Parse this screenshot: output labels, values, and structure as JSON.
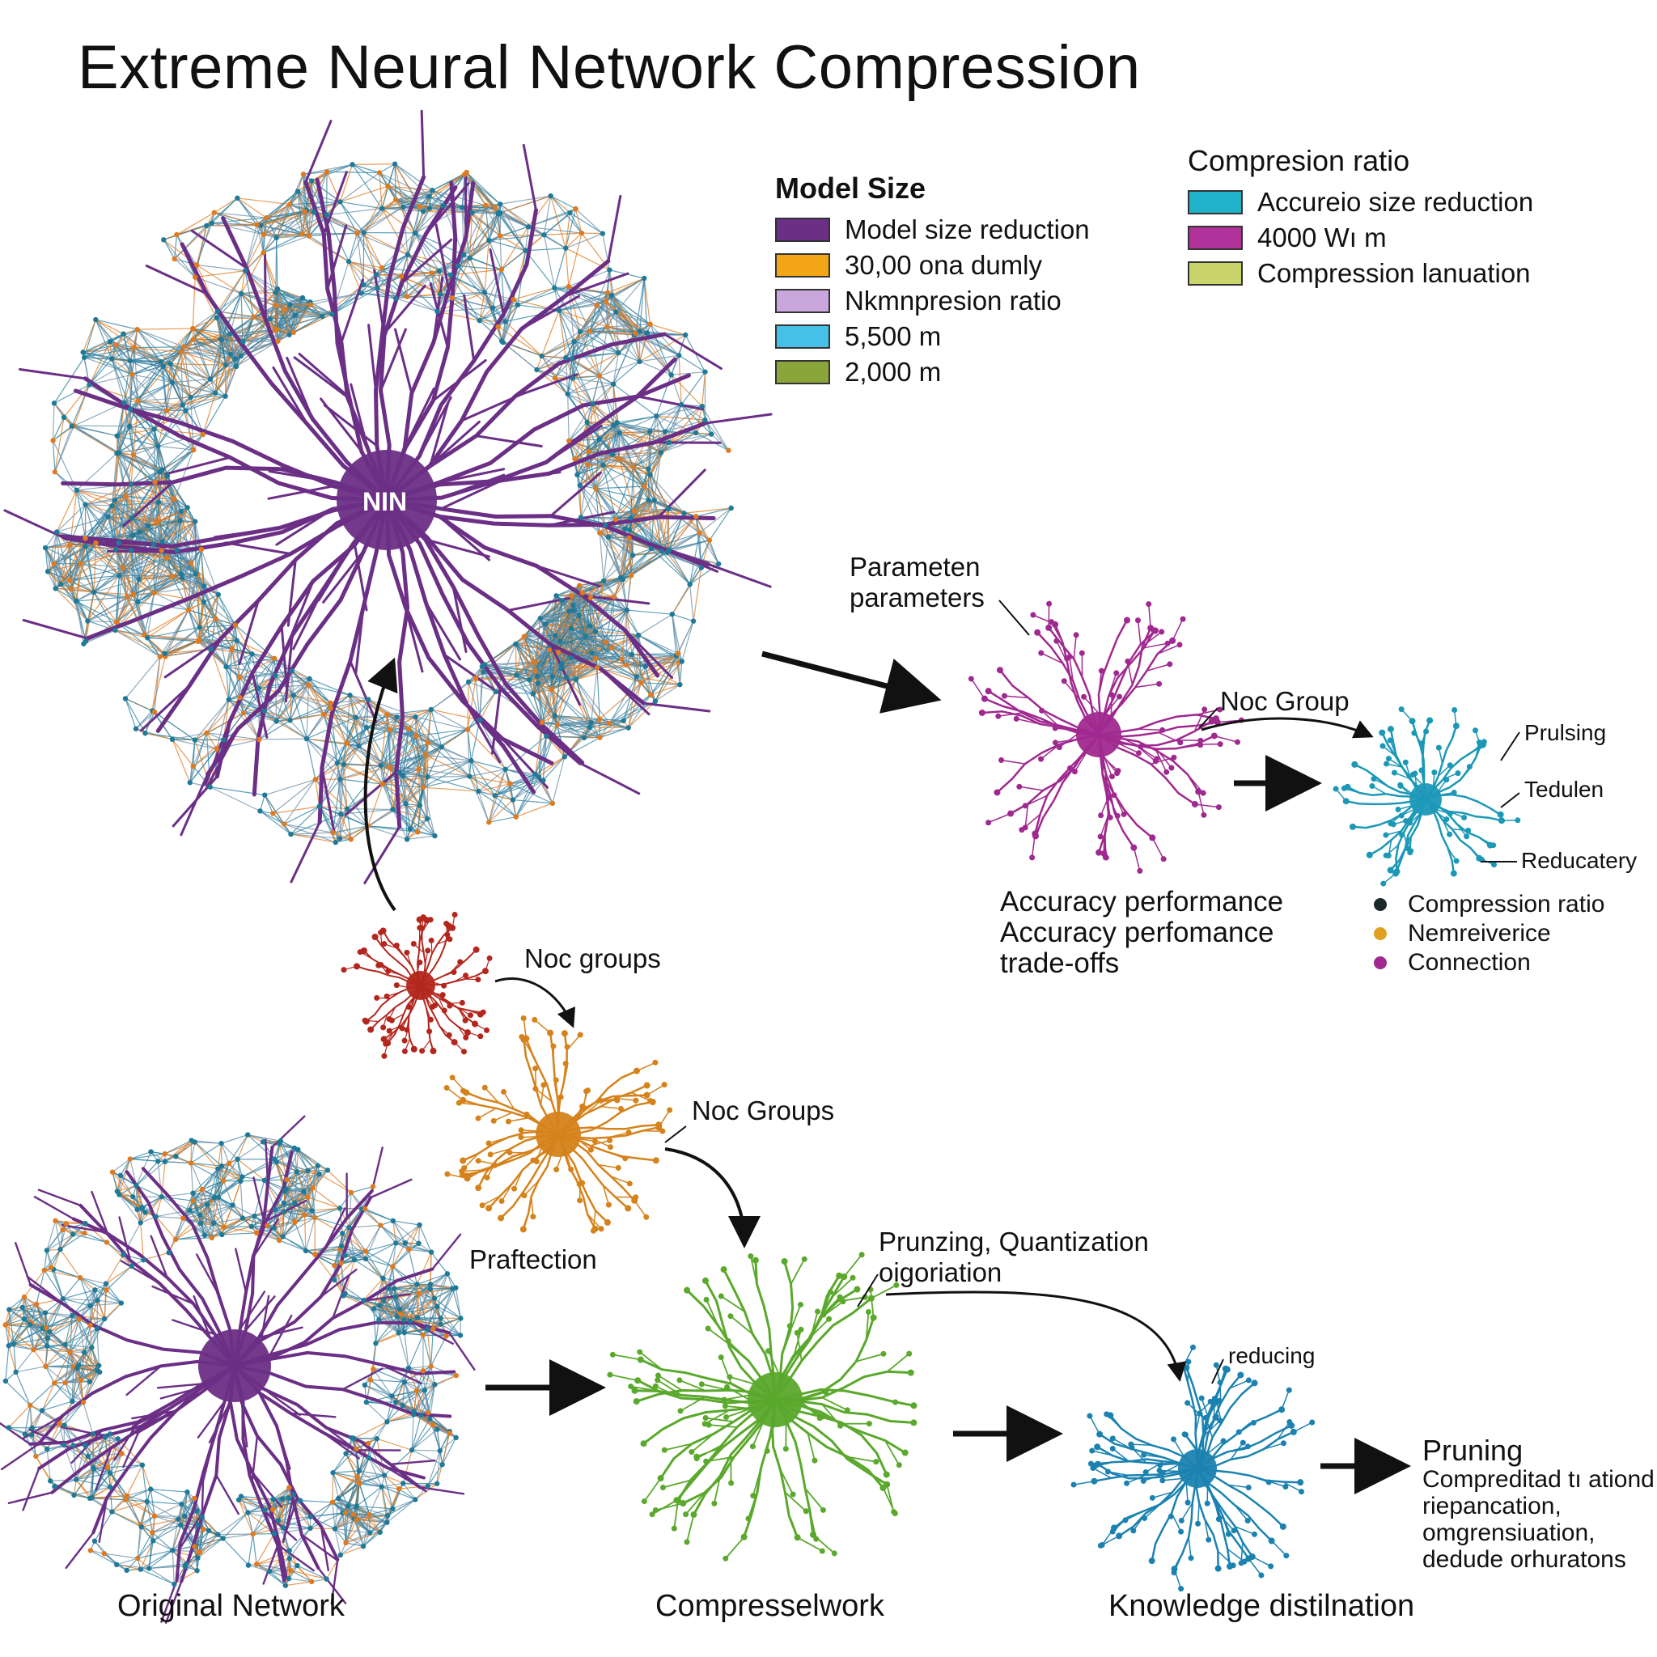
{
  "title": "Extreme Neural Network Compression",
  "legend_model_size": {
    "heading": "Model Size",
    "items": [
      {
        "label": "Model size reduction",
        "color": "#6b2f86"
      },
      {
        "label": "30,00 ona dumly",
        "color": "#f2a516"
      },
      {
        "label": "Nkmnpresion ratio",
        "color": "#c9a6dc"
      },
      {
        "label": "5,500 m",
        "color": "#45c0e6"
      },
      {
        "label": "2,000 m",
        "color": "#8aa53a"
      }
    ]
  },
  "legend_compression": {
    "heading": "Compresion ratio",
    "items": [
      {
        "label": "Accureio size reduction",
        "color": "#1fb3c9"
      },
      {
        "label": "4000 Wı m",
        "color": "#b0329a"
      },
      {
        "label": "Compression lanuation",
        "color": "#c9d46a"
      }
    ]
  },
  "networks": {
    "main": {
      "center_label": "NIN",
      "color": "#6b2f86"
    },
    "magenta": {
      "color": "#a0298f"
    },
    "teal_small": {
      "color": "#1c98b7"
    },
    "red": {
      "color": "#b3261e"
    },
    "orange": {
      "color": "#d5821b"
    },
    "original": {
      "center_label": "Original Network",
      "color": "#6b2f86"
    },
    "green": {
      "color": "#5aa82c"
    },
    "blue": {
      "color": "#1b82b0"
    }
  },
  "labels": {
    "parameter": [
      "Parameten",
      "parameters"
    ],
    "noc_group": "Noc Group",
    "pruning_small": "Prulsing",
    "tedulen": "Tedulen",
    "reducatery": "Reducatery",
    "accuracy": [
      "Accuracy performance",
      "Accuracy perfomance",
      "trade-offs"
    ],
    "noc_groups_lower": "Noc groups",
    "noc_groups_upper": "Noc Groups",
    "praftection": "Praftection",
    "prunzing": [
      "Prunzing, Quantization",
      "oigoriation"
    ],
    "reducing": "reducing",
    "pruning_big": "Pruning",
    "pruning_desc": [
      "Compreditad tı ationd",
      "riepancation,",
      "omgrensiuation,",
      "dedude orhuratons"
    ]
  },
  "dot_legend": [
    {
      "label": "Compression ratio",
      "color": "#1a2a2a"
    },
    {
      "label": "Nemreiverice",
      "color": "#e0a020"
    },
    {
      "label": "Connection",
      "color": "#a0298f"
    }
  ],
  "captions": {
    "original": "Original Network",
    "compressed": "Compresselwork",
    "distillation": "Knowledge distilnation"
  }
}
